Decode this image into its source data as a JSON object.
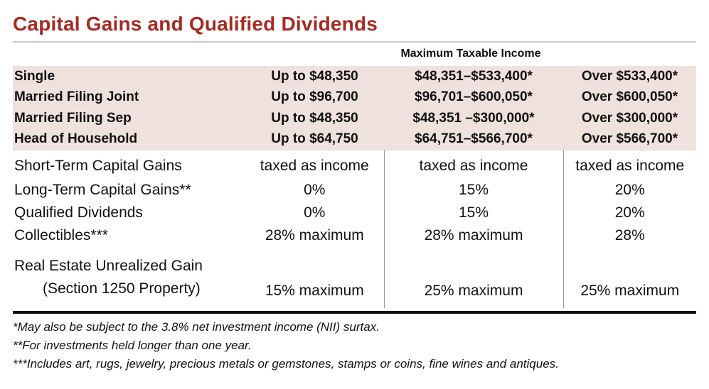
{
  "title": "Capital Gains and Qualified Dividends",
  "header_label": "Maximum Taxable Income",
  "filing_rows": [
    {
      "status": "Single",
      "low": "Up to $48,350",
      "mid": "$48,351–$533,400*",
      "high": "Over $533,400*"
    },
    {
      "status": "Married Filing Joint",
      "low": "Up to $96,700",
      "mid": "$96,701–$600,050*",
      "high": "Over $600,050*"
    },
    {
      "status": "Married Filing Sep",
      "low": "Up to $48,350",
      "mid": "$48,351 –$300,000*",
      "high": "Over $300,000*"
    },
    {
      "status": "Head of Household",
      "low": "Up to $64,750",
      "mid": "$64,751–$566,700*",
      "high": "Over $566,700*"
    }
  ],
  "rate_rows": [
    {
      "label": "Short-Term Capital Gains",
      "low": "taxed as income",
      "mid": "taxed as income",
      "high": "taxed as income"
    },
    {
      "label": "Long-Term Capital Gains**",
      "low": "0%",
      "mid": "15%",
      "high": "20%"
    },
    {
      "label": "Qualified Dividends",
      "low": "0%",
      "mid": "15%",
      "high": "20%"
    },
    {
      "label": "Collectibles***",
      "low": "28% maximum",
      "mid": "28% maximum",
      "high": "28%"
    },
    {
      "label": "Real Estate Unrealized Gain",
      "label_line2": "(Section 1250 Property)",
      "low": "15% maximum",
      "mid": "25% maximum",
      "high": "25% maximum"
    }
  ],
  "footnotes": [
    "*May also be subject to the 3.8% net investment income (NII) surtax.",
    "**For investments held longer than one year.",
    "***Includes art, rugs, jewelry, precious metals or gemstones, stamps or coins, fine wines and antiques."
  ],
  "colors": {
    "title": "#a62a22",
    "band": "#efe2dc"
  }
}
